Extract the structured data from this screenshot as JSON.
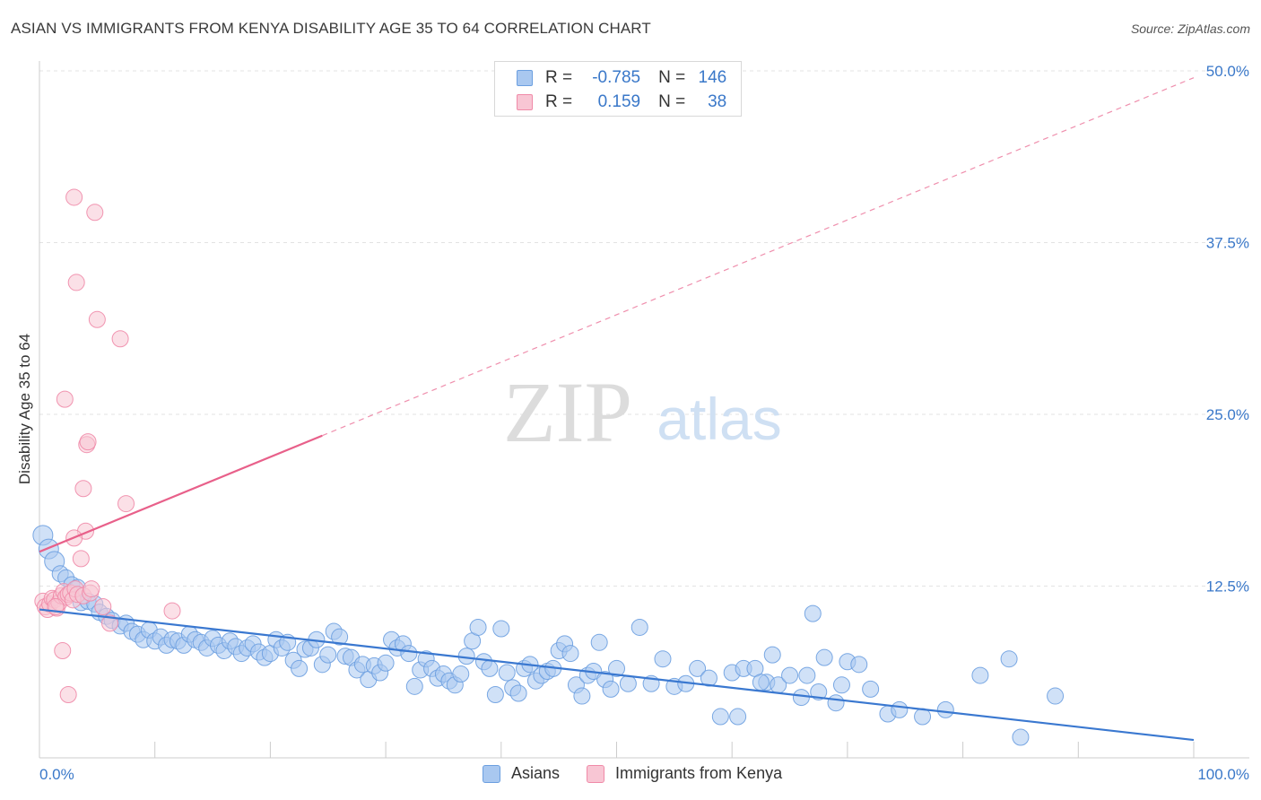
{
  "title": "ASIAN VS IMMIGRANTS FROM KENYA DISABILITY AGE 35 TO 64 CORRELATION CHART",
  "source": "Source: ZipAtlas.com",
  "watermark": {
    "zip": "ZIP",
    "atlas": "atlas"
  },
  "legend_top": [
    {
      "r_label": "R =",
      "r_value": "-0.785",
      "n_label": "N =",
      "n_value": "146",
      "color": "#a9c8f0",
      "border": "#6b9fe0"
    },
    {
      "r_label": "R =",
      "r_value": "0.159",
      "n_label": "N =",
      "n_value": "38",
      "color": "#f8c6d4",
      "border": "#f08aa8"
    }
  ],
  "legend_bottom": [
    {
      "label": "Asians",
      "color": "#a9c8f0",
      "border": "#6b9fe0"
    },
    {
      "label": "Immigrants from Kenya",
      "color": "#f8c6d4",
      "border": "#f08aa8"
    }
  ],
  "chart_data": {
    "type": "scatter",
    "title": "ASIAN VS IMMIGRANTS FROM KENYA DISABILITY AGE 35 TO 64 CORRELATION CHART",
    "xlabel": "",
    "ylabel": "Disability Age 35 to 64",
    "xlim": [
      0,
      100
    ],
    "ylim": [
      0,
      50
    ],
    "x_tick_labels": [
      "0.0%",
      "100.0%"
    ],
    "y_ticks": [
      12.5,
      25.0,
      37.5,
      50.0
    ],
    "y_tick_labels": [
      "12.5%",
      "25.0%",
      "37.5%",
      "50.0%"
    ],
    "grid": true,
    "legend_position": "bottom",
    "series": [
      {
        "name": "Asians",
        "color": "#6b9fe0",
        "fill": "#a9c8f0",
        "trend": {
          "x": [
            0,
            100
          ],
          "y": [
            10.8,
            1.3
          ],
          "color": "#3a78d0",
          "style": "solid"
        },
        "points": [
          [
            0.3,
            16.2
          ],
          [
            0.8,
            15.2
          ],
          [
            1.3,
            14.3
          ],
          [
            1.8,
            13.4
          ],
          [
            2.3,
            13.1
          ],
          [
            2.8,
            12.6
          ],
          [
            3.3,
            12.4
          ],
          [
            3.6,
            11.3
          ],
          [
            4.2,
            11.4
          ],
          [
            4.8,
            11.2
          ],
          [
            5.2,
            10.6
          ],
          [
            5.8,
            10.3
          ],
          [
            6.3,
            10.0
          ],
          [
            7.0,
            9.6
          ],
          [
            7.5,
            9.8
          ],
          [
            8.0,
            9.2
          ],
          [
            8.5,
            9.0
          ],
          [
            9.0,
            8.6
          ],
          [
            9.5,
            9.3
          ],
          [
            10.0,
            8.5
          ],
          [
            10.5,
            8.8
          ],
          [
            11.0,
            8.2
          ],
          [
            11.5,
            8.6
          ],
          [
            12.0,
            8.5
          ],
          [
            12.5,
            8.2
          ],
          [
            13.0,
            9.0
          ],
          [
            13.5,
            8.6
          ],
          [
            14.0,
            8.4
          ],
          [
            14.5,
            8.0
          ],
          [
            15.0,
            8.7
          ],
          [
            15.5,
            8.2
          ],
          [
            16.0,
            7.8
          ],
          [
            16.5,
            8.5
          ],
          [
            17.0,
            8.1
          ],
          [
            17.5,
            7.6
          ],
          [
            18.0,
            8.0
          ],
          [
            18.5,
            8.3
          ],
          [
            19.0,
            7.7
          ],
          [
            19.5,
            7.3
          ],
          [
            20.0,
            7.6
          ],
          [
            20.5,
            8.6
          ],
          [
            21.0,
            8.0
          ],
          [
            21.5,
            8.4
          ],
          [
            22.0,
            7.1
          ],
          [
            22.5,
            6.5
          ],
          [
            23.0,
            7.9
          ],
          [
            23.5,
            8.0
          ],
          [
            24.0,
            8.6
          ],
          [
            24.5,
            6.8
          ],
          [
            25.0,
            7.5
          ],
          [
            25.5,
            9.2
          ],
          [
            26.0,
            8.8
          ],
          [
            26.5,
            7.4
          ],
          [
            27.0,
            7.3
          ],
          [
            27.5,
            6.4
          ],
          [
            28.0,
            6.8
          ],
          [
            28.5,
            5.7
          ],
          [
            29.0,
            6.7
          ],
          [
            29.5,
            6.2
          ],
          [
            30.0,
            6.9
          ],
          [
            30.5,
            8.6
          ],
          [
            31.0,
            8.0
          ],
          [
            31.5,
            8.3
          ],
          [
            32.0,
            7.6
          ],
          [
            32.5,
            5.2
          ],
          [
            33.0,
            6.4
          ],
          [
            33.5,
            7.2
          ],
          [
            34.0,
            6.5
          ],
          [
            34.5,
            5.8
          ],
          [
            35.0,
            6.1
          ],
          [
            35.5,
            5.6
          ],
          [
            36.0,
            5.3
          ],
          [
            36.5,
            6.1
          ],
          [
            37.0,
            7.4
          ],
          [
            37.5,
            8.5
          ],
          [
            38.0,
            9.5
          ],
          [
            38.5,
            7.0
          ],
          [
            39.0,
            6.5
          ],
          [
            39.5,
            4.6
          ],
          [
            40.0,
            9.4
          ],
          [
            40.5,
            6.2
          ],
          [
            41.0,
            5.1
          ],
          [
            41.5,
            4.7
          ],
          [
            42.0,
            6.5
          ],
          [
            42.5,
            6.8
          ],
          [
            43.0,
            5.6
          ],
          [
            43.5,
            6.0
          ],
          [
            44.0,
            6.3
          ],
          [
            44.5,
            6.5
          ],
          [
            45.0,
            7.8
          ],
          [
            45.5,
            8.3
          ],
          [
            46.0,
            7.6
          ],
          [
            46.5,
            5.3
          ],
          [
            47.0,
            4.5
          ],
          [
            47.5,
            6.0
          ],
          [
            48.0,
            6.3
          ],
          [
            48.5,
            8.4
          ],
          [
            49.0,
            5.7
          ],
          [
            49.5,
            5.0
          ],
          [
            50.0,
            6.5
          ],
          [
            51.0,
            5.4
          ],
          [
            52.0,
            9.5
          ],
          [
            53.0,
            5.4
          ],
          [
            54.0,
            7.2
          ],
          [
            55.0,
            5.2
          ],
          [
            56.0,
            5.4
          ],
          [
            57.0,
            6.5
          ],
          [
            58.0,
            5.8
          ],
          [
            59.0,
            3.0
          ],
          [
            60.0,
            6.2
          ],
          [
            61.0,
            6.5
          ],
          [
            62.0,
            6.5
          ],
          [
            63.0,
            5.5
          ],
          [
            64.0,
            5.3
          ],
          [
            65.0,
            6.0
          ],
          [
            66.0,
            4.4
          ],
          [
            67.0,
            10.5
          ],
          [
            68.0,
            7.3
          ],
          [
            69.0,
            4.0
          ],
          [
            70.0,
            7.0
          ],
          [
            71.0,
            6.8
          ],
          [
            72.0,
            5.0
          ],
          [
            73.5,
            3.2
          ],
          [
            74.5,
            3.5
          ],
          [
            76.5,
            3.0
          ],
          [
            78.5,
            3.5
          ],
          [
            81.5,
            6.0
          ],
          [
            84.0,
            7.2
          ],
          [
            85.0,
            1.5
          ],
          [
            88.0,
            4.5
          ],
          [
            60.5,
            3.0
          ],
          [
            62.5,
            5.5
          ],
          [
            66.5,
            6.0
          ],
          [
            69.5,
            5.3
          ],
          [
            67.5,
            4.8
          ],
          [
            63.5,
            7.5
          ]
        ]
      },
      {
        "name": "Immigrants from Kenya",
        "color": "#f08aa8",
        "fill": "#f8c6d4",
        "trend": {
          "x": [
            0,
            100
          ],
          "y": [
            15.0,
            49.5
          ],
          "color": "#e8608a",
          "style": "solid-then-dashed",
          "solid_until_x": 24.5
        },
        "points": [
          [
            0.3,
            11.4
          ],
          [
            0.5,
            11.0
          ],
          [
            0.7,
            10.8
          ],
          [
            0.9,
            11.2
          ],
          [
            1.1,
            11.6
          ],
          [
            1.3,
            11.5
          ],
          [
            1.5,
            10.9
          ],
          [
            1.7,
            11.3
          ],
          [
            1.9,
            11.8
          ],
          [
            2.1,
            12.1
          ],
          [
            2.3,
            11.7
          ],
          [
            2.5,
            11.9
          ],
          [
            2.7,
            12.0
          ],
          [
            2.9,
            11.5
          ],
          [
            3.1,
            12.3
          ],
          [
            3.3,
            11.9
          ],
          [
            3.6,
            14.5
          ],
          [
            3.8,
            11.8
          ],
          [
            4.1,
            22.8
          ],
          [
            4.4,
            12.0
          ],
          [
            5.5,
            11.0
          ],
          [
            6.1,
            9.8
          ],
          [
            1.4,
            11.0
          ],
          [
            2.0,
            7.8
          ],
          [
            4.0,
            16.5
          ],
          [
            2.2,
            26.1
          ],
          [
            4.2,
            23.0
          ],
          [
            3.0,
            16.0
          ],
          [
            3.8,
            19.6
          ],
          [
            3.2,
            34.6
          ],
          [
            5.0,
            31.9
          ],
          [
            7.0,
            30.5
          ],
          [
            7.5,
            18.5
          ],
          [
            3.0,
            40.8
          ],
          [
            4.8,
            39.7
          ],
          [
            2.5,
            4.6
          ],
          [
            11.5,
            10.7
          ],
          [
            4.5,
            12.3
          ]
        ]
      }
    ]
  }
}
